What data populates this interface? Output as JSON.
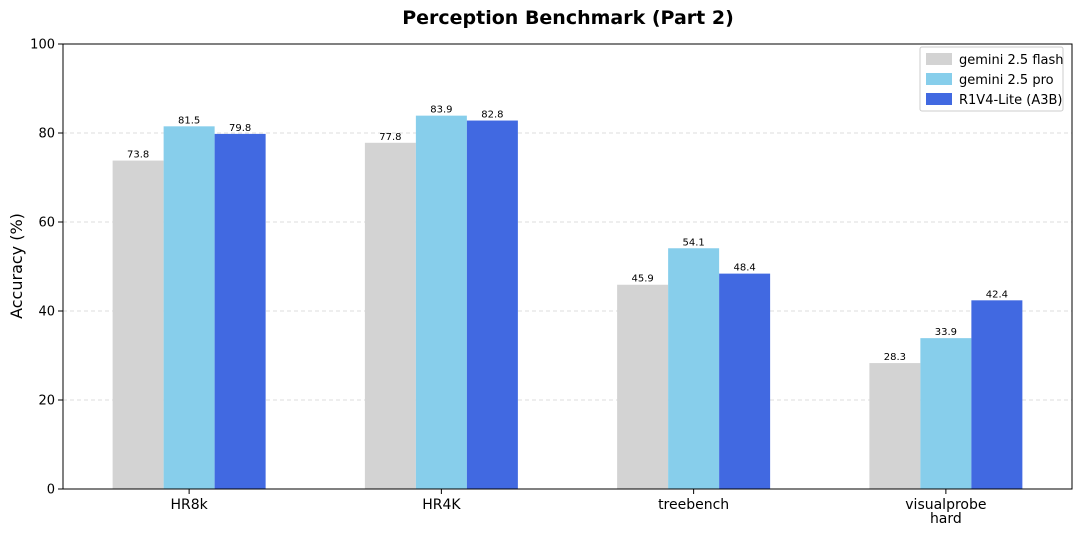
{
  "chart_data": {
    "type": "bar",
    "title": "Perception Benchmark (Part 2)",
    "xlabel": "",
    "ylabel": "Accuracy (%)",
    "ylim": [
      0,
      100
    ],
    "yticks": [
      0,
      20,
      40,
      60,
      80,
      100
    ],
    "grid": true,
    "legend_position": "top-right",
    "categories": [
      [
        "HR8k"
      ],
      [
        "HR4K"
      ],
      [
        "treebench"
      ],
      [
        "visualprobe",
        "hard"
      ]
    ],
    "series": [
      {
        "name": "gemini 2.5 flash",
        "color": "#d3d3d3",
        "values": [
          73.8,
          77.8,
          45.9,
          28.3
        ],
        "labels": [
          "73.8",
          "77.8",
          "45.9",
          "28.3"
        ]
      },
      {
        "name": "gemini 2.5 pro",
        "color": "#87ceeb",
        "values": [
          81.5,
          83.9,
          54.1,
          33.9
        ],
        "labels": [
          "81.5",
          "83.9",
          "54.1",
          "33.9"
        ]
      },
      {
        "name": "R1V4-Lite (A3B)",
        "color": "#4169e1",
        "values": [
          79.8,
          82.8,
          48.4,
          42.4
        ],
        "labels": [
          "79.8",
          "82.8",
          "48.4",
          "42.4"
        ]
      }
    ]
  }
}
